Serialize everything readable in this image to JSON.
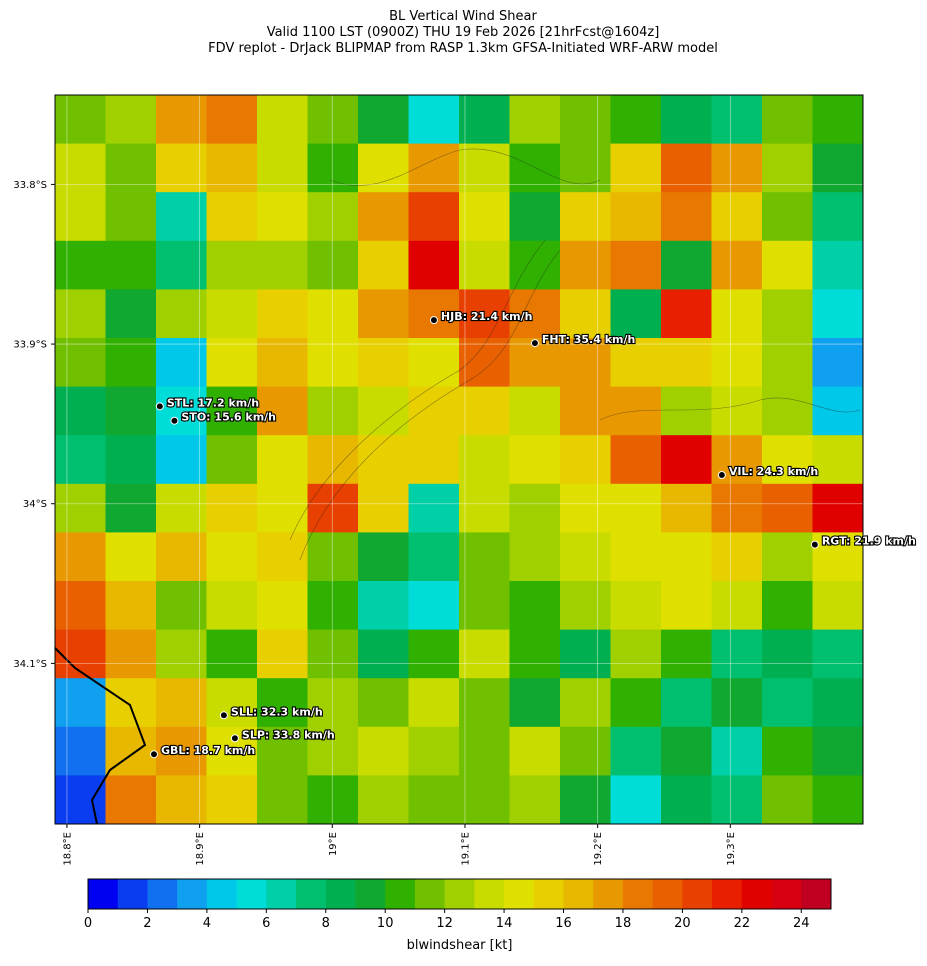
{
  "title": [
    "BL Vertical Wind Shear",
    "Valid 1100 LST (0900Z) THU 19 Feb 2026 [21hrFcst@1604z]",
    "FDV replot - DrJack BLIPMAP from RASP 1.3km GFSA-Initiated WRF-ARW model"
  ],
  "map": {
    "xlim": [
      18.791,
      19.4
    ],
    "ylim": [
      -33.744,
      -34.2006
    ],
    "xticks": [
      {
        "value": 18.8,
        "label": "18.8°E"
      },
      {
        "value": 18.9,
        "label": "18.9°E"
      },
      {
        "value": 19.0,
        "label": "19°E"
      },
      {
        "value": 19.1,
        "label": "19.1°E"
      },
      {
        "value": 19.2,
        "label": "19.2°E"
      },
      {
        "value": 19.3,
        "label": "19.3°E"
      }
    ],
    "yticks": [
      {
        "value": -33.8,
        "label": "33.8°S"
      },
      {
        "value": -33.9,
        "label": "33.9°S"
      },
      {
        "value": -34.0,
        "label": "34°S"
      },
      {
        "value": -34.1,
        "label": "34.1°S"
      }
    ],
    "grid": [
      [
        11,
        12,
        17,
        18,
        13,
        11,
        9,
        5,
        8,
        12,
        11,
        10,
        8,
        7,
        11,
        10
      ],
      [
        13,
        11,
        15,
        16,
        13,
        10,
        14,
        17,
        13,
        10,
        11,
        15,
        19,
        17,
        12,
        9
      ],
      [
        13,
        11,
        6,
        15,
        14,
        12,
        17,
        20,
        14,
        9,
        15,
        16,
        18,
        15,
        11,
        7
      ],
      [
        10,
        10,
        7,
        12,
        12,
        11,
        15,
        22,
        13,
        10,
        17,
        18,
        9,
        17,
        14,
        6
      ],
      [
        12,
        9,
        12,
        13,
        15,
        14,
        17,
        18,
        20,
        18,
        15,
        8,
        21,
        14,
        12,
        5
      ],
      [
        11,
        10,
        4,
        14,
        16,
        14,
        15,
        14,
        19,
        17,
        17,
        15,
        15,
        14,
        12,
        3
      ],
      [
        8,
        9,
        5,
        10,
        17,
        12,
        13,
        15,
        15,
        13,
        17,
        17,
        12,
        13,
        12,
        4
      ],
      [
        7,
        8,
        4,
        11,
        14,
        16,
        15,
        15,
        13,
        14,
        15,
        19,
        22,
        17,
        14,
        13
      ],
      [
        12,
        9,
        13,
        15,
        14,
        20,
        15,
        6,
        13,
        12,
        14,
        14,
        16,
        18,
        19,
        22
      ],
      [
        17,
        14,
        16,
        14,
        15,
        11,
        9,
        7,
        11,
        12,
        13,
        14,
        14,
        15,
        12,
        14
      ],
      [
        19,
        16,
        11,
        13,
        14,
        10,
        6,
        5,
        11,
        10,
        12,
        13,
        14,
        13,
        10,
        13
      ],
      [
        20,
        17,
        12,
        10,
        15,
        11,
        8,
        10,
        13,
        10,
        8,
        12,
        10,
        7,
        8,
        7
      ],
      [
        3,
        15,
        16,
        13,
        10,
        12,
        11,
        13,
        11,
        9,
        12,
        10,
        7,
        9,
        7,
        8
      ],
      [
        2,
        16,
        17,
        14,
        11,
        12,
        13,
        12,
        11,
        13,
        11,
        7,
        9,
        6,
        10,
        9
      ],
      [
        1,
        18,
        16,
        15,
        11,
        10,
        12,
        11,
        11,
        12,
        9,
        5,
        8,
        7,
        11,
        10
      ]
    ]
  },
  "stations": [
    {
      "label": "HJB: 21.4 km/h",
      "lon": 19.0766,
      "lat": -33.885
    },
    {
      "label": "FHT: 35.4 km/h",
      "lon": 19.1527,
      "lat": -33.8994
    },
    {
      "label": "STL: 17.2 km/h",
      "lon": 18.87,
      "lat": -33.939
    },
    {
      "label": "STO: 15.6 km/h",
      "lon": 18.881,
      "lat": -33.948
    },
    {
      "label": "VIL: 24.3 km/h",
      "lon": 19.2936,
      "lat": -33.982
    },
    {
      "label": "RGT: 21.9 km/h",
      "lon": 19.3637,
      "lat": -34.0256
    },
    {
      "label": "SLL: 32.3 km/h",
      "lon": 18.9183,
      "lat": -34.1325
    },
    {
      "label": "SLP: 33.8 km/h",
      "lon": 18.9266,
      "lat": -34.1469
    },
    {
      "label": "GBL: 18.7 km/h",
      "lon": 18.8656,
      "lat": -34.1569
    }
  ],
  "colorbar": {
    "label": "blwindshear [kt]",
    "lim": [
      0,
      25
    ],
    "ticks": [
      0,
      2,
      4,
      6,
      8,
      10,
      12,
      14,
      16,
      18,
      20,
      22,
      24
    ],
    "colors": [
      "#0000f0",
      "#0a3cf0",
      "#1070f0",
      "#10a0f0",
      "#00c8e8",
      "#00dcd8",
      "#00d0a8",
      "#00c070",
      "#00b050",
      "#10a830",
      "#30b000",
      "#70c000",
      "#a0d000",
      "#c8dc00",
      "#e0e000",
      "#e8d000",
      "#e8b800",
      "#e89800",
      "#e87800",
      "#e86000",
      "#e84000",
      "#e82000",
      "#e00000",
      "#d80010",
      "#c00020"
    ]
  }
}
